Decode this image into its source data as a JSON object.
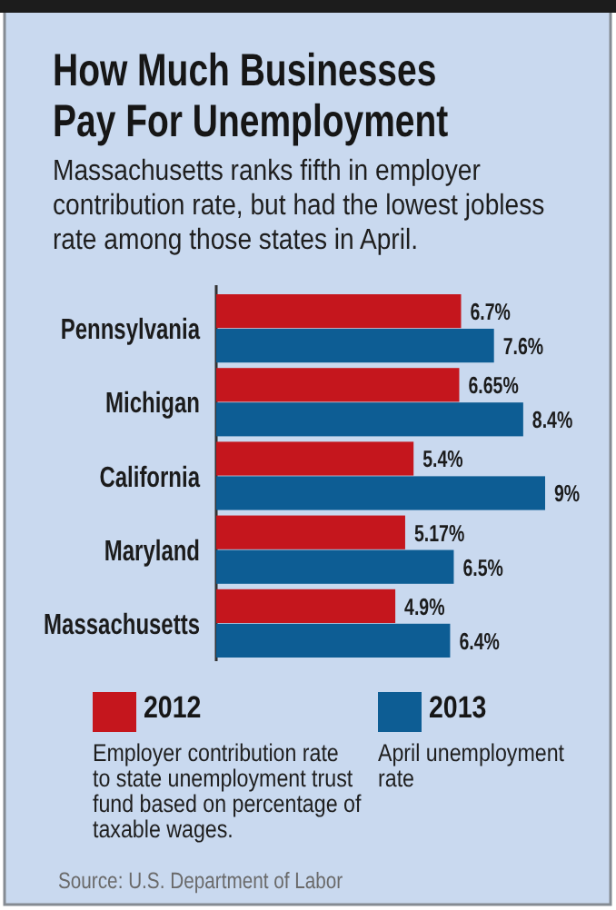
{
  "chart_data": {
    "type": "bar",
    "orientation": "horizontal",
    "title": "How Much Businesses Pay For Unemployment",
    "subtitle": "Massachusetts ranks fifth in employer contribution rate, but had the lowest jobless rate among those states in April.",
    "categories": [
      "Pennsylvania",
      "Michigan",
      "California",
      "Maryland",
      "Massachusetts"
    ],
    "series": [
      {
        "name": "2012",
        "color": "#c5161d",
        "values": [
          6.7,
          6.65,
          5.4,
          5.17,
          4.9
        ],
        "value_labels": [
          "6.7%",
          "6.65%",
          "5.4%",
          "5.17%",
          "4.9%"
        ]
      },
      {
        "name": "2013",
        "color": "#0d5d94",
        "values": [
          7.6,
          8.4,
          9,
          6.5,
          6.4
        ],
        "value_labels": [
          "7.6%",
          "8.4%",
          "9%",
          "6.5%",
          "6.4%"
        ]
      }
    ],
    "legend": "bottom",
    "annotations": [
      "Employer contribution rate\nto state unemployment trust\nfund based on percentage of\ntaxable wages.",
      "April unemployment\nrate",
      "Source: U.S. Department of Labor"
    ]
  }
}
